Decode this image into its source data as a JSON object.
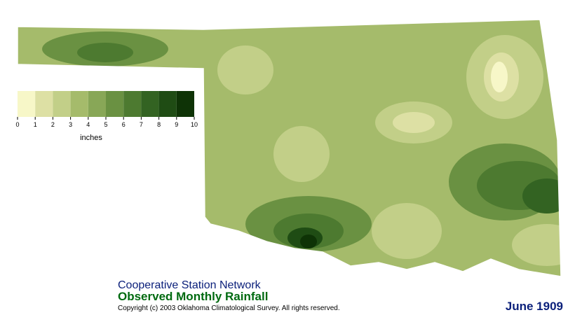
{
  "map": {
    "legend": {
      "ticks": [
        0,
        1,
        2,
        3,
        4,
        5,
        6,
        7,
        8,
        9,
        10
      ],
      "colors": [
        "#f7f7c8",
        "#dde0a4",
        "#c2cf88",
        "#a5bb6b",
        "#88a757",
        "#6a9142",
        "#4d7a30",
        "#336322",
        "#1f4c14",
        "#0e3306"
      ],
      "unit": "inches"
    },
    "network": "Cooperative Station Network",
    "title": "Observed Monthly Rainfall",
    "copyright": "Copyright (c) 2003 Oklahoma Climatological Survey. All rights reserved.",
    "date": "June 1909"
  }
}
